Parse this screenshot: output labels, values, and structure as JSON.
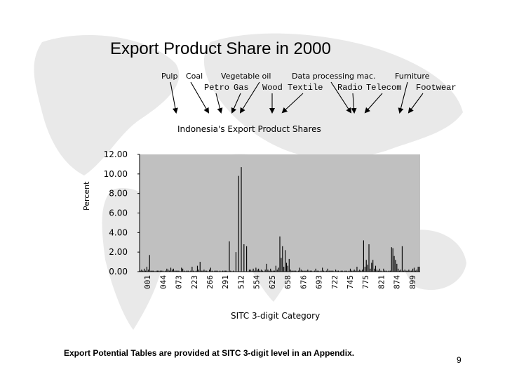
{
  "slide": {
    "title": "Export Product Share in 2000",
    "footer": "Export Potential Tables are provided at SITC 3-digit level in an Appendix.",
    "page_number": "9"
  },
  "products": {
    "pulp": "Pulp",
    "coal": "Coal",
    "vegetable_oil": "Vegetable oil",
    "data_processing": "Data processing mac.",
    "furniture": "Furniture",
    "petro": "Petro",
    "gas": "Gas",
    "wood": "Wood",
    "textile": "Textile",
    "radio": "Radio",
    "telecom": "Telecom",
    "footwear": "Footwear"
  },
  "colors": {
    "plot_bg": "#c0c0c0",
    "bar": "#000000",
    "map": "#e9e9e9"
  },
  "chart_data": {
    "type": "bar",
    "title": "Indonesia's Export Product Shares",
    "xlabel": "SITC 3-digit Category",
    "ylabel": "Percent",
    "ylim": [
      0,
      12
    ],
    "y_ticks": [
      "12.00",
      "10.00",
      "8.00",
      "6.00",
      "4.00",
      "2.00",
      "0.00"
    ],
    "x_ticks": [
      "001",
      "044",
      "073",
      "223",
      "266",
      "291",
      "512",
      "554",
      "625",
      "658",
      "676",
      "693",
      "722",
      "745",
      "775",
      "821",
      "874",
      "899"
    ],
    "grid": false,
    "legend": "none",
    "values": [
      0.1,
      0.2,
      0.1,
      0.3,
      0.1,
      0.5,
      0.2,
      1.7,
      0.1,
      0.1,
      0.1,
      0.0,
      0.1,
      0.1,
      0.1,
      0.1,
      0.1,
      0.1,
      0.0,
      0.1,
      0.3,
      0.2,
      0.1,
      0.4,
      0.2,
      0.3,
      0.1,
      0.1,
      0.1,
      0.1,
      0.0,
      0.4,
      0.3,
      0.1,
      0.0,
      0.1,
      0.1,
      0.0,
      0.1,
      0.5,
      0.1,
      0.0,
      0.1,
      0.6,
      0.2,
      1.0,
      0.1,
      0.1,
      0.2,
      0.1,
      0.1,
      0.0,
      0.2,
      0.4,
      0.1,
      0.0,
      0.1,
      0.1,
      0.1,
      0.0,
      0.1,
      0.0,
      0.1,
      0.1,
      0.1,
      0.1,
      0.0,
      3.1,
      0.1,
      0.0,
      0.1,
      0.0,
      2.0,
      0.0,
      9.8,
      0.0,
      10.7,
      0.0,
      2.8,
      0.0,
      2.6,
      0.0,
      0.2,
      0.2,
      0.1,
      0.3,
      0.1,
      0.4,
      0.2,
      0.3,
      0.1,
      0.2,
      0.1,
      0.0,
      0.2,
      0.8,
      0.2,
      0.1,
      0.3,
      0.1,
      0.1,
      0.1,
      0.6,
      0.2,
      0.4,
      3.6,
      1.4,
      2.6,
      0.5,
      2.2,
      0.9,
      0.6,
      1.3,
      0.2,
      0.1,
      0.1,
      0.1,
      0.1,
      0.0,
      0.1,
      0.4,
      0.2,
      0.1,
      0.1,
      0.1,
      0.1,
      0.2,
      0.1,
      0.1,
      0.1,
      0.0,
      0.1,
      0.3,
      0.1,
      0.1,
      0.0,
      0.1,
      0.4,
      0.1,
      0.0,
      0.1,
      0.3,
      0.1,
      0.1,
      0.1,
      0.1,
      0.0,
      0.2,
      0.1,
      0.1,
      0.0,
      0.1,
      0.1,
      0.0,
      0.1,
      0.1,
      0.0,
      0.1,
      0.3,
      0.1,
      0.1,
      0.2,
      0.1,
      0.5,
      0.1,
      0.2,
      0.1,
      0.2,
      3.2,
      0.5,
      1.2,
      0.7,
      2.8,
      0.3,
      0.9,
      1.2,
      0.3,
      0.6,
      0.2,
      0.1,
      0.3,
      0.1,
      0.0,
      0.3,
      0.1,
      0.1,
      0.0,
      0.1,
      0.1,
      2.5,
      2.4,
      1.6,
      1.2,
      0.8,
      0.3,
      0.1,
      0.2,
      2.6,
      0.1,
      0.2,
      0.1,
      0.1,
      0.2,
      0.1,
      0.1,
      0.3,
      0.4,
      0.1,
      0.2,
      0.5,
      0.5
    ]
  }
}
